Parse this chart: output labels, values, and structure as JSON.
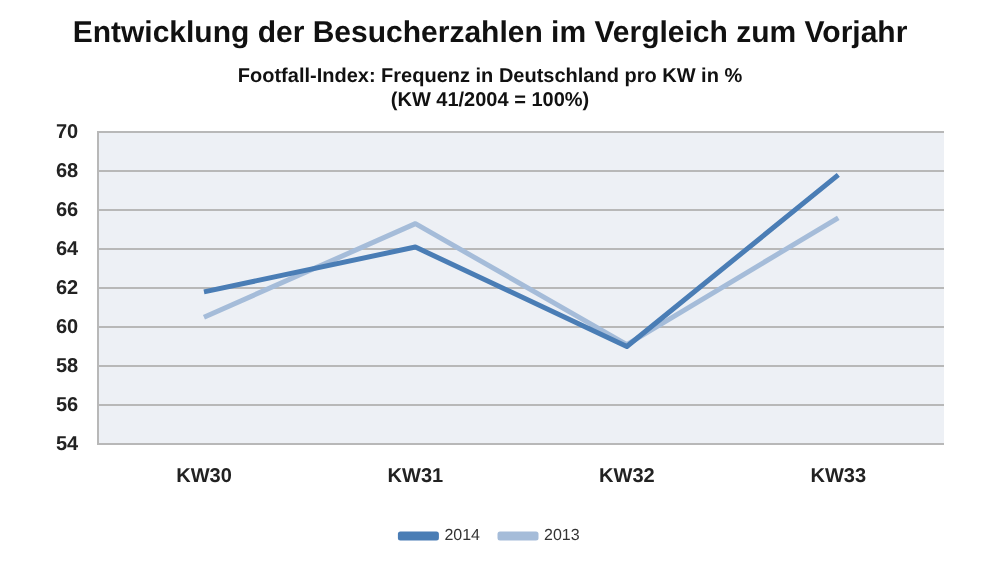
{
  "chart_data": {
    "type": "line",
    "title": "Entwicklung der Besucherzahlen im Vergleich zum Vorjahr",
    "subtitle": "Footfall-Index: Frequenz in Deutschland pro KW in %\n(KW 41/2004 = 100%)",
    "categories": [
      "KW30",
      "KW31",
      "KW32",
      "KW33"
    ],
    "series": [
      {
        "name": "2014",
        "color": "#4a7db5",
        "values": [
          61.8,
          64.1,
          59.0,
          67.8
        ]
      },
      {
        "name": "2013",
        "color": "#a5bcd9",
        "values": [
          60.5,
          65.3,
          59.1,
          65.6
        ]
      }
    ],
    "ylim": [
      54,
      70
    ],
    "yticks": [
      54,
      56,
      58,
      60,
      62,
      64,
      66,
      68,
      70
    ],
    "grid": "y",
    "legend": "bottom",
    "marker": "none",
    "line_style": "solid"
  }
}
